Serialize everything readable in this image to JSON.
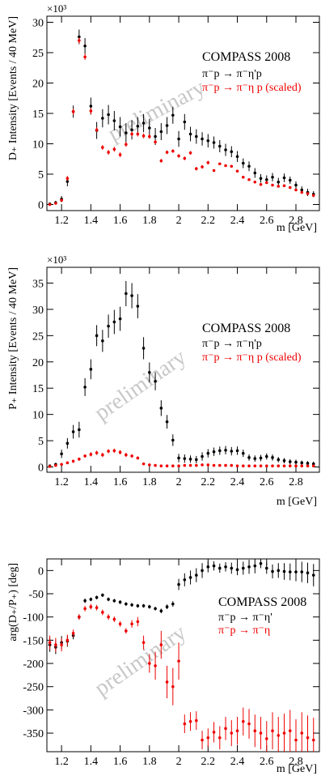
{
  "colors": {
    "black_series": "#000000",
    "red_series": "#ee0000",
    "watermark": "#c8c8c8"
  },
  "chart_data": [
    {
      "type": "scatter",
      "xlabel": "m [GeV]",
      "ylabel": "D₊ Intensity [Events / 40 MeV]",
      "exponent_label": "×10³",
      "xlim": [
        1.1,
        2.96
      ],
      "ylim": [
        -1,
        31
      ],
      "x_ticks": [
        1.2,
        1.4,
        1.6,
        1.8,
        2,
        2.2,
        2.4,
        2.6,
        2.8
      ],
      "y_ticks": [
        0,
        5,
        10,
        15,
        20,
        25,
        30
      ],
      "legend": [
        "COMPASS 2008",
        "π⁻p → π⁻η'p",
        "π⁻p → π⁻η p (scaled)"
      ],
      "watermark": "preliminary",
      "series": [
        {
          "color": "#000000",
          "x": [
            1.12,
            1.16,
            1.2,
            1.24,
            1.28,
            1.32,
            1.36,
            1.4,
            1.44,
            1.48,
            1.52,
            1.56,
            1.6,
            1.64,
            1.68,
            1.72,
            1.76,
            1.8,
            1.84,
            1.88,
            1.92,
            1.96,
            2.0,
            2.04,
            2.08,
            2.12,
            2.16,
            2.2,
            2.24,
            2.28,
            2.32,
            2.36,
            2.4,
            2.44,
            2.48,
            2.52,
            2.56,
            2.6,
            2.64,
            2.68,
            2.72,
            2.76,
            2.8,
            2.84,
            2.88,
            2.92,
            2.96
          ],
          "y": [
            0.1,
            0.3,
            0.9,
            3.8,
            15.3,
            27.6,
            26.1,
            16.2,
            12.2,
            14.2,
            14.8,
            13.8,
            12.8,
            11.8,
            12.3,
            12.9,
            13.4,
            12.6,
            11.2,
            12.0,
            13.0,
            14.7,
            10.8,
            13.6,
            11.6,
            11.2,
            10.8,
            10.5,
            10.2,
            9.6,
            9.0,
            8.7,
            7.9,
            6.8,
            6.3,
            5.2,
            4.3,
            4.1,
            4.5,
            3.7,
            4.4,
            4.0,
            3.2,
            2.4,
            2.0,
            1.7,
            1.6
          ],
          "err": [
            0.2,
            0.3,
            0.5,
            0.8,
            1.0,
            1.2,
            1.3,
            1.4,
            1.4,
            1.5,
            1.6,
            1.6,
            1.6,
            1.6,
            1.6,
            1.5,
            1.5,
            1.5,
            1.4,
            1.4,
            1.4,
            1.4,
            1.3,
            1.3,
            1.2,
            1.2,
            1.1,
            1.1,
            1.0,
            1.0,
            1.0,
            0.9,
            0.9,
            0.8,
            0.8,
            0.8,
            0.7,
            0.7,
            0.7,
            0.7,
            0.7,
            0.6,
            0.6,
            0.6,
            0.6,
            0.5,
            0.5
          ]
        },
        {
          "color": "#ee0000",
          "x": [
            1.12,
            1.16,
            1.2,
            1.24,
            1.28,
            1.32,
            1.36,
            1.4,
            1.44,
            1.48,
            1.52,
            1.56,
            1.6,
            1.64,
            1.68,
            1.72,
            1.76,
            1.8,
            1.84,
            1.88,
            1.92,
            1.96,
            2.0,
            2.04,
            2.08,
            2.12,
            2.16,
            2.2,
            2.24,
            2.28,
            2.32,
            2.36,
            2.4,
            2.44,
            2.48,
            2.52,
            2.56,
            2.6,
            2.64,
            2.68,
            2.72,
            2.76,
            2.8,
            2.84,
            2.88,
            2.92,
            2.96
          ],
          "y": [
            0.0,
            0.2,
            0.7,
            4.3,
            15.3,
            27.0,
            24.3,
            15.4,
            12.3,
            9.4,
            8.6,
            9.1,
            8.2,
            9.9,
            11.6,
            11.6,
            11.3,
            11.2,
            10.3,
            7.2,
            8.6,
            8.8,
            8.0,
            7.6,
            8.5,
            5.9,
            6.2,
            6.9,
            5.6,
            6.7,
            6.4,
            6.3,
            5.5,
            4.5,
            4.1,
            3.7,
            3.3,
            3.6,
            3.2,
            3.0,
            3.1,
            2.8,
            2.4,
            2.0,
            1.8,
            1.5,
            1.4
          ],
          "err": [
            0.1,
            0.1,
            0.2,
            0.4,
            0.5,
            0.5,
            0.5,
            0.5,
            0.4,
            0.4,
            0.4,
            0.4,
            0.4,
            0.4,
            0.4,
            0.4,
            0.4,
            0.4,
            0.3,
            0.3,
            0.3,
            0.3,
            0.3,
            0.3,
            0.3,
            0.3,
            0.3,
            0.3,
            0.2,
            0.2,
            0.2,
            0.2,
            0.2,
            0.2,
            0.2,
            0.2,
            0.2,
            0.2,
            0.2,
            0.2,
            0.2,
            0.2,
            0.2,
            0.2,
            0.2,
            0.2,
            0.2
          ]
        }
      ]
    },
    {
      "type": "scatter",
      "xlabel": "m [GeV]",
      "ylabel": "P₊ Intensity [Events / 40 MeV]",
      "exponent_label": "×10³",
      "xlim": [
        1.1,
        2.96
      ],
      "ylim": [
        -1,
        38
      ],
      "x_ticks": [
        1.2,
        1.4,
        1.6,
        1.8,
        2,
        2.2,
        2.4,
        2.6,
        2.8
      ],
      "y_ticks": [
        0,
        5,
        10,
        15,
        20,
        25,
        30,
        35
      ],
      "legend": [
        "COMPASS 2008",
        "π⁻p → π⁻η'p",
        "π⁻p → π⁻η p (scaled)"
      ],
      "watermark": "preliminary",
      "series": [
        {
          "color": "#000000",
          "x": [
            1.12,
            1.16,
            1.2,
            1.24,
            1.28,
            1.32,
            1.36,
            1.4,
            1.44,
            1.48,
            1.52,
            1.56,
            1.6,
            1.64,
            1.68,
            1.72,
            1.76,
            1.8,
            1.84,
            1.88,
            1.92,
            1.96,
            2.0,
            2.04,
            2.08,
            2.12,
            2.16,
            2.2,
            2.24,
            2.28,
            2.32,
            2.36,
            2.4,
            2.44,
            2.48,
            2.52,
            2.56,
            2.6,
            2.64,
            2.68,
            2.72,
            2.76,
            2.8,
            2.84,
            2.88,
            2.92,
            2.96
          ],
          "y": [
            0.2,
            0.5,
            2.5,
            4.5,
            6.7,
            7.1,
            15.2,
            18.6,
            25.0,
            24.0,
            26.8,
            27.6,
            28.2,
            33.0,
            32.6,
            30.6,
            22.6,
            18.0,
            16.3,
            11.2,
            8.6,
            5.1,
            1.7,
            1.6,
            1.5,
            1.4,
            2.0,
            2.6,
            2.9,
            3.1,
            3.2,
            3.0,
            3.1,
            2.6,
            1.8,
            1.6,
            1.7,
            2.0,
            1.8,
            1.4,
            1.2,
            1.0,
            0.9,
            0.8,
            0.7,
            0.6,
            0.5
          ],
          "err": [
            0.2,
            0.3,
            0.8,
            1.0,
            1.3,
            1.5,
            1.7,
            1.9,
            2.0,
            2.1,
            2.2,
            2.3,
            2.3,
            2.4,
            2.4,
            2.3,
            2.1,
            1.9,
            1.7,
            1.5,
            1.3,
            1.1,
            0.8,
            0.8,
            0.7,
            0.7,
            0.8,
            0.8,
            0.8,
            0.8,
            0.8,
            0.8,
            0.8,
            0.7,
            0.6,
            0.6,
            0.6,
            0.6,
            0.6,
            0.5,
            0.5,
            0.5,
            0.5,
            0.4,
            0.4,
            0.4,
            0.4
          ]
        },
        {
          "color": "#ee0000",
          "x": [
            1.12,
            1.16,
            1.2,
            1.24,
            1.28,
            1.32,
            1.36,
            1.4,
            1.44,
            1.48,
            1.52,
            1.56,
            1.6,
            1.64,
            1.68,
            1.72,
            1.76,
            1.8,
            1.84,
            1.88,
            1.92,
            1.96,
            2.0,
            2.04,
            2.08,
            2.12,
            2.16,
            2.2,
            2.24,
            2.28,
            2.32,
            2.36,
            2.4,
            2.44,
            2.48,
            2.52,
            2.56,
            2.6,
            2.64,
            2.68,
            2.72,
            2.76,
            2.8,
            2.84,
            2.88,
            2.92,
            2.96
          ],
          "y": [
            0.1,
            0.3,
            0.5,
            0.8,
            1.1,
            1.5,
            2.1,
            2.4,
            2.7,
            2.3,
            3.0,
            3.1,
            2.8,
            2.3,
            2.1,
            1.7,
            0.6,
            0.4,
            0.3,
            0.2,
            0.2,
            0.2,
            0.2,
            0.3,
            0.3,
            0.3,
            0.4,
            0.4,
            0.3,
            0.3,
            0.3,
            0.3,
            0.2,
            0.2,
            0.2,
            0.2,
            0.2,
            0.2,
            0.2,
            0.2,
            0.2,
            0.2,
            0.2,
            0.2,
            0.2,
            0.2,
            0.2
          ],
          "err": [
            0.1,
            0.1,
            0.2,
            0.2,
            0.3,
            0.3,
            0.3,
            0.4,
            0.4,
            0.4,
            0.4,
            0.4,
            0.4,
            0.4,
            0.3,
            0.3,
            0.2,
            0.2,
            0.1,
            0.1,
            0.1,
            0.1,
            0.1,
            0.1,
            0.1,
            0.1,
            0.1,
            0.1,
            0.1,
            0.1,
            0.1,
            0.1,
            0.1,
            0.1,
            0.1,
            0.1,
            0.1,
            0.1,
            0.1,
            0.1,
            0.1,
            0.1,
            0.1,
            0.1,
            0.1,
            0.1,
            0.1
          ]
        }
      ]
    },
    {
      "type": "scatter",
      "xlabel": "m [GeV]",
      "ylabel": "arg(D₊/P₊) [deg]",
      "xlim": [
        1.1,
        2.96
      ],
      "ylim": [
        -390,
        25
      ],
      "x_ticks": [
        1.2,
        1.4,
        1.6,
        1.8,
        2,
        2.2,
        2.4,
        2.6,
        2.8
      ],
      "y_ticks": [
        0,
        -50,
        -100,
        -150,
        -200,
        -250,
        -300,
        -350
      ],
      "legend": [
        "COMPASS 2008",
        "π⁻p → π⁻η'",
        "π⁻p → π⁻η"
      ],
      "watermark": "preliminary",
      "series": [
        {
          "color": "#000000",
          "x": [
            1.12,
            1.16,
            1.2,
            1.24,
            1.28,
            1.32,
            1.36,
            1.4,
            1.44,
            1.48,
            1.52,
            1.56,
            1.6,
            1.64,
            1.68,
            1.72,
            1.76,
            1.8,
            1.84,
            1.88,
            1.92,
            1.96,
            2.0,
            2.04,
            2.08,
            2.12,
            2.16,
            2.2,
            2.24,
            2.28,
            2.32,
            2.36,
            2.4,
            2.44,
            2.48,
            2.52,
            2.56,
            2.6,
            2.64,
            2.68,
            2.72,
            2.76,
            2.8,
            2.84,
            2.88,
            2.92,
            2.96
          ],
          "y": [
            -160,
            -165,
            -155,
            -152,
            -140,
            -100,
            -65,
            -62,
            -58,
            -53,
            -62,
            -65,
            -68,
            -72,
            -74,
            -76,
            -76,
            -78,
            -82,
            -87,
            -78,
            -72,
            -30,
            -20,
            -15,
            -10,
            0,
            8,
            10,
            5,
            8,
            5,
            2,
            5,
            8,
            10,
            15,
            5,
            -2,
            0,
            -2,
            -3,
            -3,
            -3,
            -5,
            -10,
            -22
          ],
          "err": [
            15,
            15,
            14,
            12,
            8,
            5,
            5,
            4,
            4,
            4,
            4,
            4,
            4,
            4,
            4,
            4,
            4,
            4,
            4,
            5,
            5,
            6,
            12,
            14,
            15,
            15,
            16,
            12,
            10,
            10,
            10,
            12,
            12,
            14,
            15,
            16,
            10,
            12,
            15,
            16,
            18,
            18,
            20,
            22,
            22,
            24,
            26
          ]
        },
        {
          "color": "#ee0000",
          "x": [
            1.12,
            1.16,
            1.2,
            1.24,
            1.28,
            1.32,
            1.36,
            1.4,
            1.44,
            1.48,
            1.52,
            1.56,
            1.6,
            1.64,
            1.68,
            1.72,
            1.76,
            1.8,
            1.84,
            1.88,
            1.92,
            1.96,
            2.0,
            2.04,
            2.08,
            2.12,
            2.16,
            2.2,
            2.24,
            2.28,
            2.32,
            2.36,
            2.4,
            2.44,
            2.48,
            2.52,
            2.56,
            2.6,
            2.64,
            2.68,
            2.72,
            2.76,
            2.8,
            2.84,
            2.88,
            2.92,
            2.96
          ],
          "y": [
            -155,
            -160,
            -160,
            -150,
            -135,
            -100,
            -82,
            -78,
            -80,
            -90,
            -100,
            -105,
            -115,
            -130,
            -115,
            -110,
            -155,
            -200,
            -205,
            -160,
            -240,
            -250,
            -195,
            -330,
            -325,
            -323,
            -365,
            -360,
            -348,
            -360,
            -340,
            -350,
            -345,
            -325,
            -330,
            -345,
            -350,
            -362,
            -345,
            -355,
            -350,
            -345,
            -365,
            -350,
            -360,
            -365,
            -365
          ],
          "err": [
            15,
            15,
            14,
            12,
            8,
            6,
            6,
            6,
            6,
            6,
            6,
            6,
            6,
            6,
            8,
            10,
            15,
            20,
            30,
            30,
            35,
            40,
            40,
            20,
            20,
            20,
            20,
            20,
            22,
            25,
            25,
            28,
            30,
            30,
            32,
            35,
            35,
            38,
            40,
            40,
            42,
            45,
            45,
            45,
            48,
            48,
            50
          ]
        }
      ]
    }
  ]
}
